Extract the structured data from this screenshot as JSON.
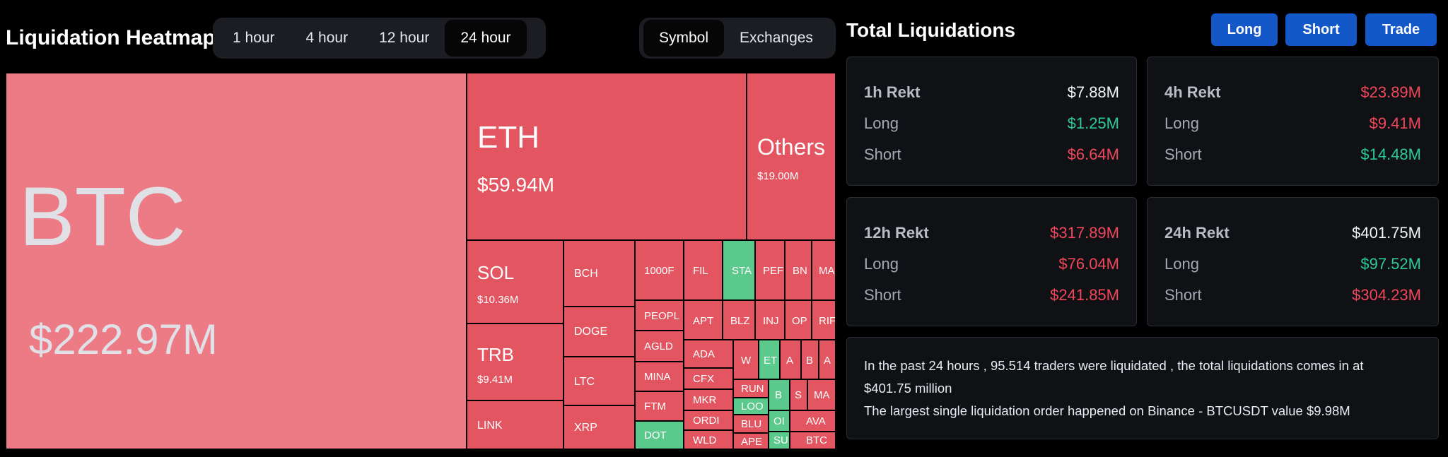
{
  "heatmap": {
    "title": "Liquidation Heatmap",
    "time_tabs": [
      {
        "label": "1 hour",
        "active": false
      },
      {
        "label": "4 hour",
        "active": false
      },
      {
        "label": "12 hour",
        "active": false
      },
      {
        "label": "24 hour",
        "active": true
      }
    ],
    "view_tabs": [
      {
        "label": "Symbol",
        "active": true
      },
      {
        "label": "Exchanges",
        "active": false
      }
    ],
    "colors": {
      "btc": "#ed7b85",
      "red": "#e25561",
      "green": "#5bc98b"
    },
    "tiles": [
      {
        "symbol": "BTC",
        "value": "$222.97M"
      },
      {
        "symbol": "ETH",
        "value": "$59.94M"
      },
      {
        "symbol": "Others",
        "value": "$19.00M"
      },
      {
        "symbol": "SOL",
        "value": "$10.36M"
      },
      {
        "symbol": "TRB",
        "value": "$9.41M"
      },
      {
        "symbol": "LINK",
        "value": ""
      },
      {
        "symbol": "BCH",
        "value": ""
      },
      {
        "symbol": "DOGE",
        "value": ""
      },
      {
        "symbol": "LTC",
        "value": ""
      },
      {
        "symbol": "XRP",
        "value": ""
      },
      {
        "symbol": "1000F",
        "value": ""
      },
      {
        "symbol": "PEOPL",
        "value": ""
      },
      {
        "symbol": "AGLD",
        "value": ""
      },
      {
        "symbol": "MINA",
        "value": ""
      },
      {
        "symbol": "FTM",
        "value": ""
      },
      {
        "symbol": "DOT",
        "value": ""
      },
      {
        "symbol": "FIL",
        "value": ""
      },
      {
        "symbol": "STA",
        "value": ""
      },
      {
        "symbol": "PEF",
        "value": ""
      },
      {
        "symbol": "BN",
        "value": ""
      },
      {
        "symbol": "MA",
        "value": ""
      },
      {
        "symbol": "APT",
        "value": ""
      },
      {
        "symbol": "BLZ",
        "value": ""
      },
      {
        "symbol": "INJ",
        "value": ""
      },
      {
        "symbol": "OP",
        "value": ""
      },
      {
        "symbol": "RIF",
        "value": ""
      },
      {
        "symbol": "ADA",
        "value": ""
      },
      {
        "symbol": "W",
        "value": ""
      },
      {
        "symbol": "ET",
        "value": ""
      },
      {
        "symbol": "A",
        "value": ""
      },
      {
        "symbol": "B",
        "value": ""
      },
      {
        "symbol": "A",
        "value": ""
      },
      {
        "symbol": "CFX",
        "value": ""
      },
      {
        "symbol": "MKR",
        "value": ""
      },
      {
        "symbol": "ORDI",
        "value": ""
      },
      {
        "symbol": "WLD",
        "value": ""
      },
      {
        "symbol": "RUN",
        "value": ""
      },
      {
        "symbol": "LOO",
        "value": ""
      },
      {
        "symbol": "BLU",
        "value": ""
      },
      {
        "symbol": "APE",
        "value": ""
      },
      {
        "symbol": "B",
        "value": ""
      },
      {
        "symbol": "S",
        "value": ""
      },
      {
        "symbol": "OI",
        "value": ""
      },
      {
        "symbol": "SU",
        "value": ""
      },
      {
        "symbol": "MA",
        "value": ""
      },
      {
        "symbol": "AVA",
        "value": ""
      },
      {
        "symbol": "BTC",
        "value": ""
      }
    ]
  },
  "total": {
    "title": "Total Liquidations",
    "buttons": {
      "long": "Long",
      "short": "Short",
      "trade": "Trade"
    },
    "colors": {
      "white": "#f2f4f7",
      "red": "#f0475b",
      "green": "#2ec99a"
    },
    "cards": [
      {
        "title": "1h Rekt",
        "total": "$7.88M",
        "total_color": "white",
        "long_label": "Long",
        "long": "$1.25M",
        "long_color": "green",
        "short_label": "Short",
        "short": "$6.64M",
        "short_color": "red"
      },
      {
        "title": "4h Rekt",
        "total": "$23.89M",
        "total_color": "red",
        "long_label": "Long",
        "long": "$9.41M",
        "long_color": "red",
        "short_label": "Short",
        "short": "$14.48M",
        "short_color": "green"
      },
      {
        "title": "12h Rekt",
        "total": "$317.89M",
        "total_color": "red",
        "long_label": "Long",
        "long": "$76.04M",
        "long_color": "red",
        "short_label": "Short",
        "short": "$241.85M",
        "short_color": "red"
      },
      {
        "title": "24h Rekt",
        "total": "$401.75M",
        "total_color": "white",
        "long_label": "Long",
        "long": "$97.52M",
        "long_color": "green",
        "short_label": "Short",
        "short": "$304.23M",
        "short_color": "red"
      }
    ],
    "summary_line1": "In the past 24 hours , 95.514 traders were liquidated , the total liquidations comes in at",
    "summary_line2": "$401.75 million",
    "summary_line3": "The largest single liquidation order happened on Binance - BTCUSDT value $9.98M"
  }
}
